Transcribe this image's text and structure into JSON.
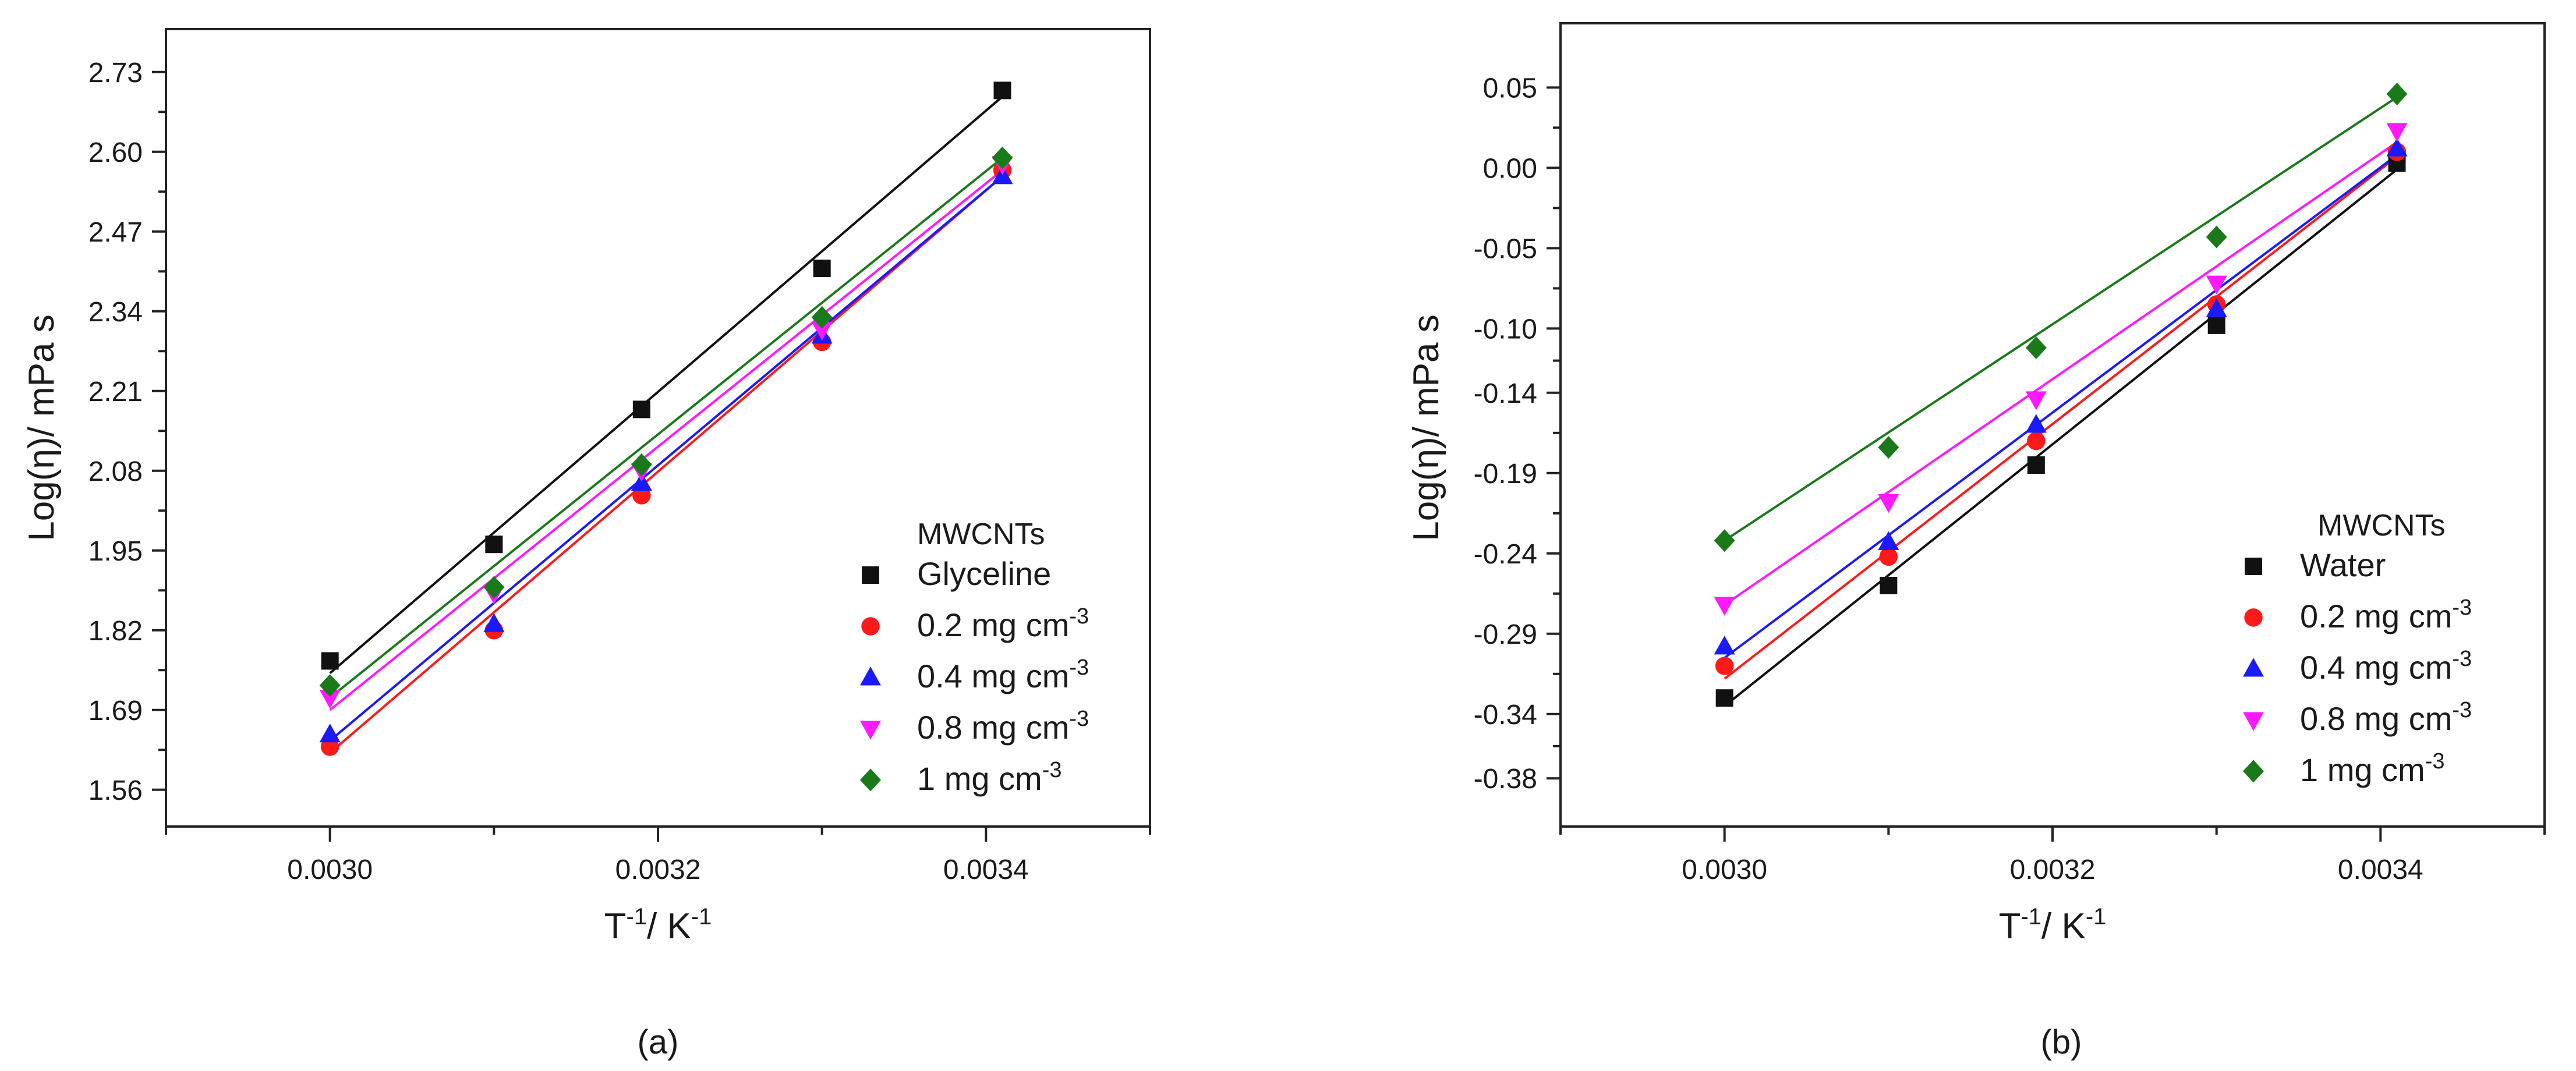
{
  "chart_data": [
    {
      "type": "scatter",
      "panel_label": "(a)",
      "title": "",
      "xlabel_base": "T",
      "xlabel_sup1": "-1",
      "xlabel_mid": "/ K",
      "xlabel_sup2": "-1",
      "ylabel": "Log(η)/ mPa s",
      "xlim": [
        0.0029,
        0.0035
      ],
      "ylim": [
        1.5,
        2.8
      ],
      "xticks": [
        0.003,
        0.0032,
        0.0034
      ],
      "xtick_labels": [
        "0.0030",
        "0.0032",
        "0.0034"
      ],
      "yticks": [
        1.56,
        1.69,
        1.82,
        1.95,
        2.08,
        2.21,
        2.34,
        2.47,
        2.6,
        2.73
      ],
      "ytick_labels": [
        "1.56",
        "1.69",
        "1.82",
        "1.95",
        "2.08",
        "2.21",
        "2.34",
        "2.47",
        "2.60",
        "2.73"
      ],
      "legend_title": "MWCNTs",
      "legend_position": "bottom-right",
      "x": [
        0.003,
        0.0031,
        0.00319,
        0.0033,
        0.00341
      ],
      "series": [
        {
          "name": "Glyceline",
          "unit": "",
          "marker": "square",
          "color": "#111111",
          "values": [
            1.77,
            1.96,
            2.18,
            2.41,
            2.7
          ],
          "fit": [
            1.75,
            2.69
          ]
        },
        {
          "name": "0.2",
          "unit": "mg cm",
          "sup": "-3",
          "marker": "circle",
          "color": "#ff1a1a",
          "values": [
            1.63,
            1.82,
            2.04,
            2.29,
            2.57
          ],
          "fit": [
            1.62,
            2.56
          ]
        },
        {
          "name": "0.4",
          "unit": "mg cm",
          "sup": "-3",
          "marker": "triangle-up",
          "color": "#1a1aff",
          "values": [
            1.65,
            1.83,
            2.06,
            2.3,
            2.56
          ],
          "fit": [
            1.64,
            2.56
          ]
        },
        {
          "name": "0.8",
          "unit": "mg cm",
          "sup": "-3",
          "marker": "triangle-down",
          "color": "#ff19ff",
          "values": [
            1.71,
            1.88,
            2.08,
            2.31,
            2.58
          ],
          "fit": [
            1.69,
            2.57
          ]
        },
        {
          "name": "1",
          "unit": "mg cm",
          "sup": "-3",
          "marker": "diamond",
          "color": "#1a7a1a",
          "values": [
            1.73,
            1.89,
            2.09,
            2.33,
            2.59
          ],
          "fit": [
            1.71,
            2.59
          ]
        }
      ]
    },
    {
      "type": "scatter",
      "panel_label": "(b)",
      "title": "",
      "xlabel_base": "T",
      "xlabel_sup1": "-1",
      "xlabel_mid": "/ K",
      "xlabel_sup2": "-1",
      "ylabel": "Log(η)/ mPa s",
      "xlim": [
        0.0029,
        0.0035
      ],
      "ylim": [
        -0.41,
        0.09
      ],
      "xticks": [
        0.003,
        0.0032,
        0.0034
      ],
      "xtick_labels": [
        "0.0030",
        "0.0032",
        "0.0034"
      ],
      "yticks": [
        -0.38,
        -0.34,
        -0.29,
        -0.24,
        -0.19,
        -0.14,
        -0.1,
        -0.05,
        0.0,
        0.05
      ],
      "ytick_labels": [
        "-0.38",
        "-0.34",
        "-0.29",
        "-0.24",
        "-0.19",
        "-0.14",
        "-0.10",
        "-0.05",
        "0.00",
        "0.05"
      ],
      "legend_title": "MWCNTs",
      "legend_position": "bottom-right",
      "x": [
        0.003,
        0.0031,
        0.00319,
        0.0033,
        0.00341
      ],
      "series": [
        {
          "name": "Water",
          "unit": "",
          "marker": "square",
          "color": "#111111",
          "values": [
            -0.33,
            -0.26,
            -0.185,
            -0.098,
            0.003
          ],
          "fit": [
            -0.335,
            -0.001
          ]
        },
        {
          "name": "0.2",
          "unit": "mg cm",
          "sup": "-3",
          "marker": "circle",
          "color": "#ff1a1a",
          "values": [
            -0.31,
            -0.242,
            -0.17,
            -0.085,
            0.01
          ],
          "fit": [
            -0.318,
            0.007
          ]
        },
        {
          "name": "0.4",
          "unit": "mg cm",
          "sup": "-3",
          "marker": "triangle-up",
          "color": "#1a1aff",
          "values": [
            -0.298,
            -0.233,
            -0.16,
            -0.088,
            0.012
          ],
          "fit": [
            -0.305,
            0.008
          ]
        },
        {
          "name": "0.8",
          "unit": "mg cm",
          "sup": "-3",
          "marker": "triangle-down",
          "color": "#ff19ff",
          "values": [
            -0.272,
            -0.208,
            -0.144,
            -0.072,
            0.023
          ],
          "fit": [
            -0.272,
            0.016
          ]
        },
        {
          "name": "1",
          "unit": "mg cm",
          "sup": "-3",
          "marker": "diamond",
          "color": "#1a7a1a",
          "values": [
            -0.232,
            -0.174,
            -0.112,
            -0.043,
            0.046
          ],
          "fit": [
            -0.232,
            0.044
          ]
        }
      ]
    }
  ]
}
